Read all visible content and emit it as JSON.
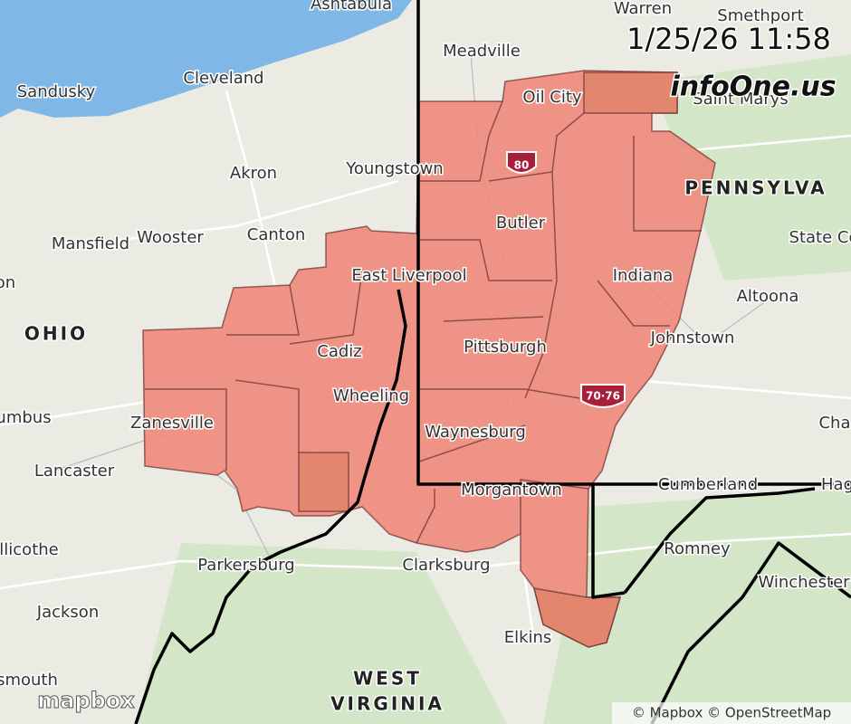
{
  "timestamp": "1/25/26 11:58",
  "logo": "infoOne.us",
  "brand": "mapbox",
  "attribution": "© Mapbox © OpenStreetMap",
  "shields": [
    "80",
    "70·76"
  ],
  "states": [
    "OHIO",
    "PENNSYLVA",
    "WEST",
    "VIRGINIA"
  ],
  "cities": [
    "Ashtabula",
    "Warren",
    "Smethport",
    "Meadville",
    "Cleveland",
    "Sandusky",
    "Oil City",
    "Saint Marys",
    "Youngstown",
    "Akron",
    "Butler",
    "Mansfield",
    "Wooster",
    "Canton",
    "State Co",
    "on",
    "East Liverpool",
    "Indiana",
    "Altoona",
    "Cadiz",
    "Pittsburgh",
    "Johnstown",
    "Wheeling",
    "Zanesville",
    "umbus",
    "Cha",
    "Waynesburg",
    "Lancaster",
    "Cumberland",
    "Hag",
    "Morgantown",
    "Romney",
    "llicothe",
    "Parkersburg",
    "Clarksburg",
    "Winchester",
    "Jackson",
    "Elkins",
    "smouth"
  ]
}
